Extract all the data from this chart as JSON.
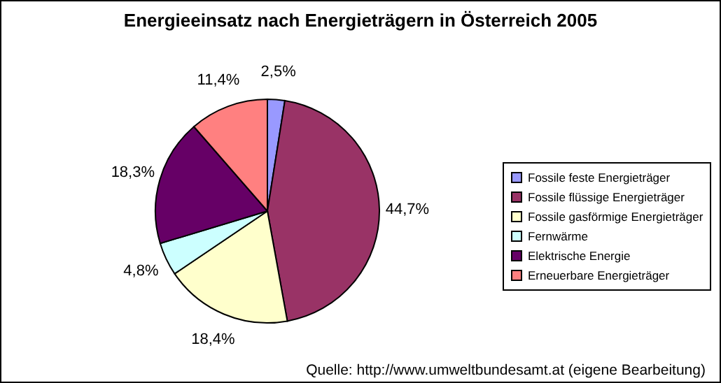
{
  "chart_data": {
    "type": "pie",
    "title": "Energieeinsatz nach Energieträgern in Österreich 2005",
    "categories": [
      "Fossile feste Energieträger",
      "Fossile flüssige Energieträger",
      "Fossile gasförmige Energieträger",
      "Fernwärme",
      "Elektrische Energie",
      "Erneuerbare Energieträger"
    ],
    "values": [
      2.5,
      44.7,
      18.4,
      4.8,
      18.3,
      11.4
    ],
    "value_labels": [
      "2,5%",
      "44,7%",
      "18,4%",
      "4,8%",
      "18,3%",
      "11,4%"
    ],
    "colors": [
      "#9999ff",
      "#993366",
      "#ffffcc",
      "#ccffff",
      "#660066",
      "#ff8080"
    ],
    "legend": "right",
    "annotations": [
      "Quelle: http://www.umweltbundesamt.at (eigene Bearbeitung)"
    ]
  }
}
